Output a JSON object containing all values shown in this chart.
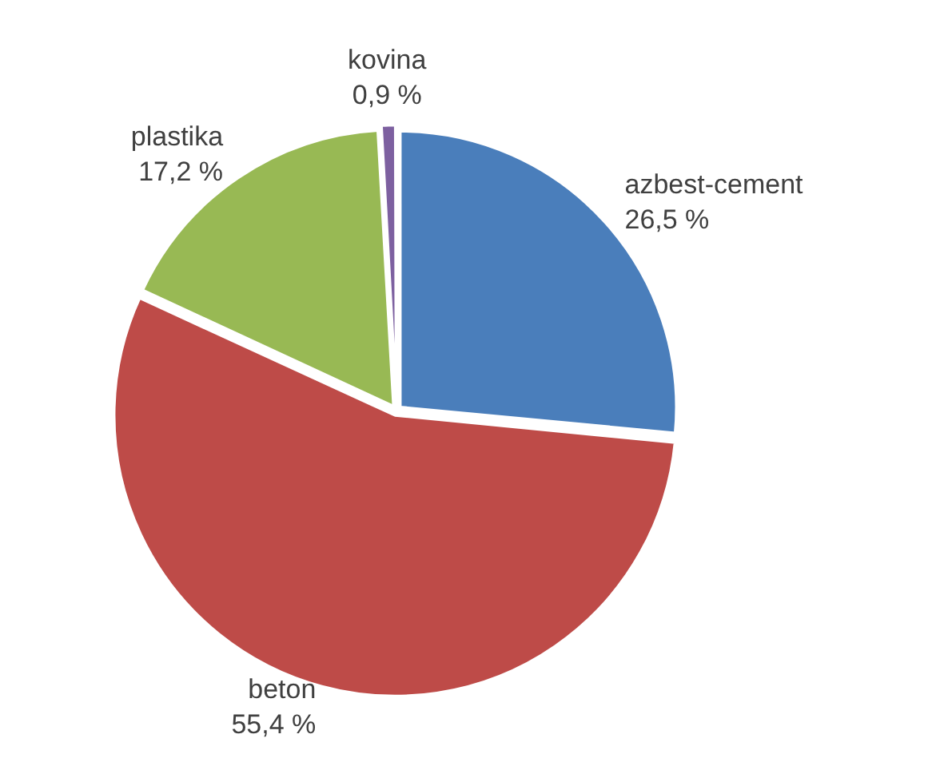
{
  "chart_data": {
    "type": "pie",
    "categories": [
      "azbest-cement",
      "beton",
      "plastika",
      "kovina"
    ],
    "values": [
      26.5,
      55.4,
      17.2,
      0.9
    ],
    "colors": [
      "#4a7ebb",
      "#be4b48",
      "#98b954",
      "#7d60a0"
    ],
    "value_labels": [
      "26,5 %",
      "55,4 %",
      "17,2 %",
      "0,9 %"
    ],
    "legend": false
  }
}
